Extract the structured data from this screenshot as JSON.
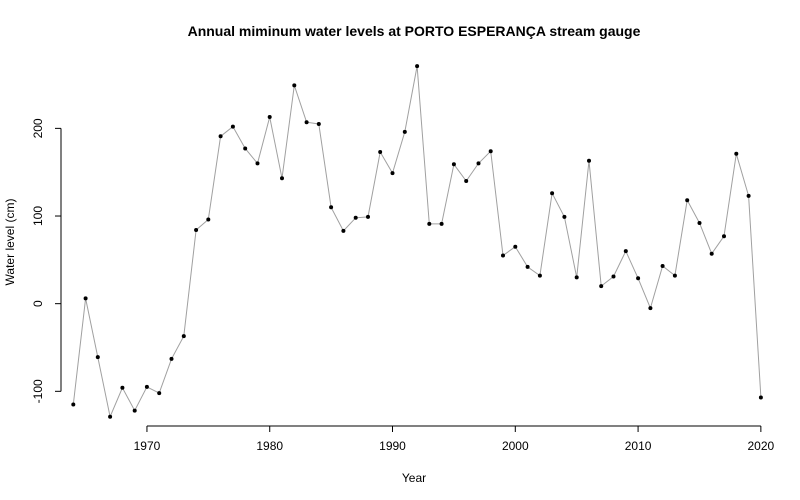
{
  "chart_data": {
    "type": "line",
    "title": "Annual miminum water levels at PORTO ESPERANÇA stream gauge",
    "xlabel": "Year",
    "ylabel": "Water level (cm)",
    "x_ticks": [
      1970,
      1980,
      1990,
      2000,
      2010,
      2020
    ],
    "y_ticks": [
      -100,
      0,
      100,
      200
    ],
    "xlim": [
      1963,
      2020.5
    ],
    "ylim": [
      -135,
      278
    ],
    "grid": false,
    "line_color": "#a0a0a0",
    "marker_color": "#000000",
    "series": [
      {
        "x": [
          1964,
          1965,
          1966,
          1967,
          1968,
          1969,
          1970,
          1971,
          1972,
          1973,
          1974,
          1975,
          1976,
          1977,
          1978,
          1979,
          1980,
          1981,
          1982,
          1983,
          1984,
          1985,
          1986,
          1987,
          1988,
          1989,
          1990,
          1991,
          1992,
          1993,
          1994,
          1995,
          1996,
          1997,
          1998,
          1999,
          2000,
          2001,
          2002,
          2003,
          2004,
          2005,
          2006,
          2007,
          2008,
          2009,
          2010,
          2011,
          2012,
          2013,
          2014,
          2015,
          2016,
          2017,
          2018,
          2019,
          2020
        ],
        "values": [
          -115,
          6,
          -61,
          -129,
          -96,
          -122,
          -95,
          -102,
          -63,
          -37,
          84,
          96,
          191,
          202,
          177,
          160,
          213,
          143,
          249,
          207,
          205,
          110,
          83,
          98,
          99,
          173,
          149,
          196,
          271,
          91,
          91,
          159,
          140,
          160,
          174,
          55,
          65,
          42,
          32,
          126,
          99,
          30,
          163,
          20,
          31,
          60,
          29,
          -5,
          43,
          32,
          118,
          92,
          57,
          77,
          171,
          123,
          -107
        ]
      }
    ]
  }
}
